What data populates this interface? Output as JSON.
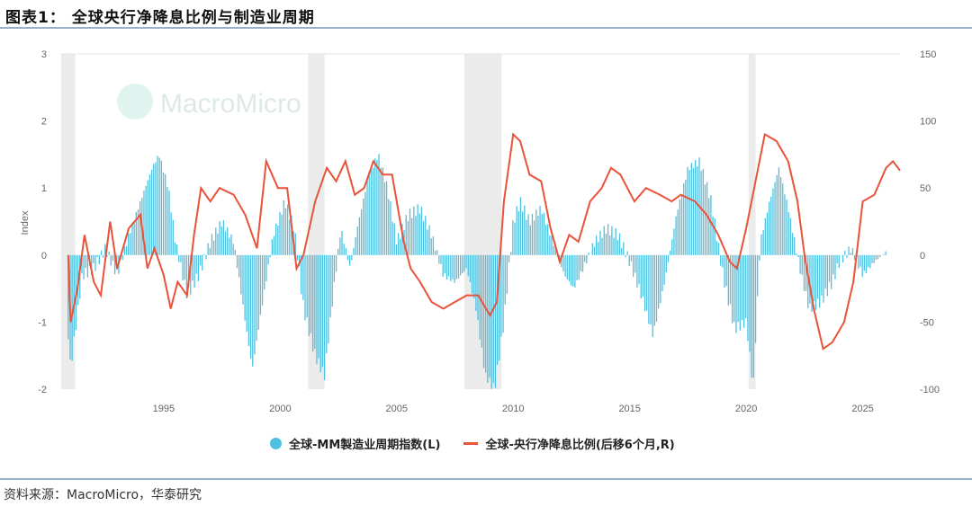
{
  "header": {
    "title": "图表1：  全球央行净降息比例与制造业周期"
  },
  "footer": {
    "source": "资料来源：MacroMicro，华泰研究"
  },
  "watermark": "MacroMicro",
  "colors": {
    "bars": "#4fc0df",
    "line": "#e8533a",
    "recession": "#ebebeb"
  },
  "chart_data": {
    "type": "bar+line",
    "title": "全球央行净降息比例与制造业周期",
    "ylabel": "Index",
    "ylim": [
      -2,
      3
    ],
    "y2lim": [
      -100,
      150
    ],
    "xlim": [
      1990.6,
      2026.6
    ],
    "yticks": [
      "3",
      "2",
      "1",
      "0",
      "-1",
      "-2"
    ],
    "y2ticks": [
      "150",
      "100",
      "50",
      "0",
      "-50",
      "-100"
    ],
    "xticks": [
      "1995",
      "2000",
      "2005",
      "2010",
      "2015",
      "2020",
      "2025"
    ],
    "recessions": [
      [
        1990.6,
        1991.2
      ],
      [
        2001.2,
        2001.9
      ],
      [
        2007.9,
        2009.5
      ],
      [
        2020.1,
        2020.4
      ]
    ],
    "legend": [
      "全球-MM製造业周期指数(L)",
      "全球-央行净降息比例(后移6个月,R)"
    ],
    "series": [
      {
        "name": "全球-MM製造业周期指数(L)",
        "type": "bar",
        "axis": "left",
        "x": [
          1990.9,
          1991.0,
          1991.5,
          1992,
          1992.5,
          1993,
          1993.5,
          1994,
          1994.5,
          1994.8,
          1995.2,
          1995.5,
          1996,
          1996.5,
          1997,
          1997.5,
          1998,
          1998.5,
          1998.8,
          1999.2,
          1999.7,
          2000.2,
          2000.6,
          2001.0,
          2001.5,
          2001.9,
          2002.3,
          2002.6,
          2003.0,
          2003.3,
          2003.8,
          2004.2,
          2004.6,
          2005.0,
          2005.5,
          2006.0,
          2006.5,
          2007.0,
          2007.5,
          2008.0,
          2008.4,
          2008.8,
          2009.2,
          2009.6,
          2010.0,
          2010.3,
          2010.7,
          2011.2,
          2011.7,
          2012.2,
          2012.6,
          2013.0,
          2013.5,
          2014.0,
          2014.5,
          2015.0,
          2015.5,
          2016.0,
          2016.5,
          2017.0,
          2017.5,
          2018.0,
          2018.5,
          2019.0,
          2019.5,
          2020.0,
          2020.3,
          2020.6,
          2021.0,
          2021.4,
          2021.8,
          2022.3,
          2022.7,
          2023.2,
          2023.7,
          2024.0,
          2024.5,
          2025.0,
          2025.5,
          2026.0
        ],
        "values": [
          -1.2,
          -1.7,
          -0.3,
          -0.2,
          0.1,
          -0.3,
          0.3,
          0.8,
          1.3,
          1.5,
          1.0,
          0.2,
          -0.6,
          -0.3,
          0.2,
          0.5,
          0.2,
          -1.0,
          -1.7,
          -0.8,
          0.3,
          0.8,
          0.4,
          -0.8,
          -1.5,
          -1.8,
          -0.5,
          0.4,
          -0.2,
          0.4,
          1.2,
          1.5,
          1.0,
          0.2,
          0.6,
          0.7,
          0.3,
          -0.3,
          -0.4,
          -0.2,
          -0.8,
          -1.8,
          -2.0,
          -1.0,
          0.5,
          0.8,
          0.5,
          0.7,
          0.2,
          -0.3,
          -0.5,
          -0.2,
          0.2,
          0.4,
          0.3,
          -0.1,
          -0.6,
          -1.2,
          -0.4,
          0.6,
          1.3,
          1.4,
          0.8,
          -0.3,
          -1.1,
          -1.0,
          -2.0,
          0.2,
          0.8,
          1.3,
          0.7,
          -0.2,
          -0.8,
          -0.7,
          -0.4,
          -0.1,
          0.1,
          -0.3,
          -0.1,
          0.05
        ]
      },
      {
        "name": "全球-央行净降息比例(后移6个月,R)",
        "type": "line",
        "axis": "right",
        "x": [
          1990.9,
          1991.0,
          1991.3,
          1991.6,
          1992.0,
          1992.3,
          1992.7,
          1993.0,
          1993.5,
          1994.0,
          1994.3,
          1994.6,
          1995.0,
          1995.3,
          1995.6,
          1996.0,
          1996.3,
          1996.6,
          1997.0,
          1997.4,
          1998.0,
          1998.5,
          1999.0,
          1999.4,
          1999.9,
          2000.3,
          2000.7,
          2001.0,
          2001.5,
          2002.0,
          2002.4,
          2002.8,
          2003.2,
          2003.6,
          2004.0,
          2004.4,
          2004.8,
          2005.3,
          2005.6,
          2006.0,
          2006.5,
          2007.0,
          2007.5,
          2008.0,
          2008.5,
          2009.0,
          2009.3,
          2009.6,
          2010.0,
          2010.3,
          2010.7,
          2011.2,
          2011.6,
          2012.0,
          2012.4,
          2012.8,
          2013.3,
          2013.8,
          2014.2,
          2014.6,
          2015.2,
          2015.7,
          2016.3,
          2016.8,
          2017.2,
          2017.8,
          2018.3,
          2018.8,
          2019.3,
          2019.6,
          2020.0,
          2020.4,
          2020.8,
          2021.3,
          2021.8,
          2022.2,
          2022.5,
          2022.9,
          2023.3,
          2023.7,
          2024.2,
          2024.6,
          2025.0,
          2025.5,
          2026.0,
          2026.3,
          2026.6
        ],
        "values": [
          0,
          -50,
          -25,
          15,
          -20,
          -30,
          25,
          -10,
          20,
          30,
          -10,
          5,
          -15,
          -40,
          -20,
          -30,
          15,
          50,
          40,
          50,
          45,
          30,
          5,
          70,
          50,
          50,
          -10,
          0,
          40,
          65,
          55,
          70,
          45,
          50,
          70,
          60,
          60,
          10,
          -10,
          -20,
          -35,
          -40,
          -35,
          -30,
          -30,
          -45,
          -35,
          40,
          90,
          85,
          60,
          55,
          20,
          -5,
          15,
          10,
          40,
          50,
          65,
          60,
          40,
          50,
          45,
          40,
          45,
          40,
          30,
          15,
          -5,
          -10,
          20,
          55,
          90,
          85,
          70,
          40,
          0,
          -40,
          -70,
          -65,
          -50,
          -20,
          40,
          45,
          65,
          70,
          63
        ]
      }
    ]
  }
}
